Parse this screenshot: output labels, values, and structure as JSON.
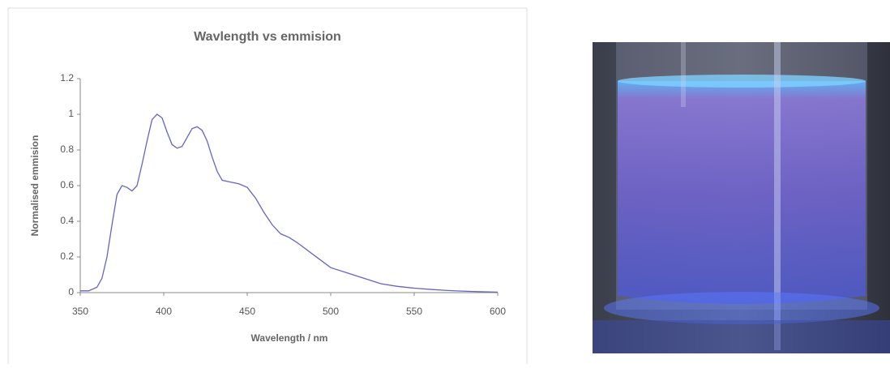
{
  "chart_data": {
    "type": "line",
    "title": "Wavlength vs emmision",
    "x_label": "Wavelength / nm",
    "y_label": "Normalised emmision",
    "x": [
      350,
      355,
      360,
      363,
      366,
      369,
      372,
      375,
      378,
      381,
      384,
      387,
      390,
      393,
      396,
      399,
      402,
      405,
      408,
      411,
      414,
      417,
      420,
      423,
      426,
      429,
      432,
      435,
      440,
      445,
      450,
      455,
      460,
      465,
      470,
      475,
      480,
      490,
      500,
      510,
      520,
      530,
      540,
      550,
      560,
      570,
      580,
      590,
      600
    ],
    "series": [
      {
        "name": "Normalised emmision",
        "color": "#6464c8",
        "values": [
          0.01,
          0.01,
          0.03,
          0.08,
          0.2,
          0.38,
          0.55,
          0.6,
          0.59,
          0.57,
          0.6,
          0.72,
          0.85,
          0.97,
          1.0,
          0.98,
          0.9,
          0.83,
          0.81,
          0.82,
          0.87,
          0.92,
          0.93,
          0.91,
          0.85,
          0.76,
          0.68,
          0.63,
          0.62,
          0.61,
          0.59,
          0.53,
          0.45,
          0.38,
          0.33,
          0.31,
          0.28,
          0.21,
          0.14,
          0.11,
          0.08,
          0.05,
          0.035,
          0.025,
          0.018,
          0.012,
          0.008,
          0.005,
          0.003
        ]
      }
    ],
    "xlim": [
      350,
      600
    ],
    "xticks": [
      350,
      400,
      450,
      500,
      550,
      600
    ],
    "ylim": [
      0,
      1.2
    ],
    "yticks": [
      0,
      0.2,
      0.4,
      0.6,
      0.8,
      1,
      1.2
    ],
    "grid": false
  }
}
